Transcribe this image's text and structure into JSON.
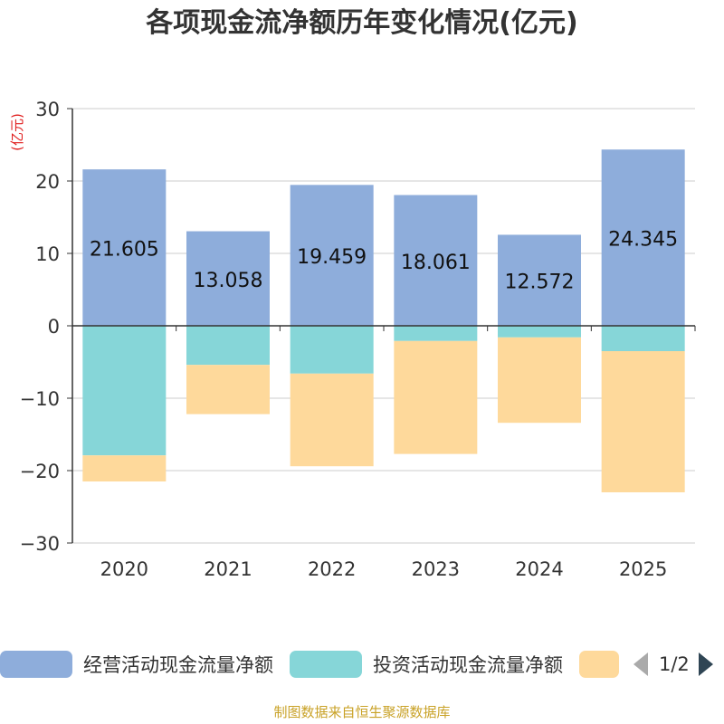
{
  "chart_data": {
    "type": "bar",
    "stacked": true,
    "title": "各项现金流净额历年变化情况(亿元)",
    "ylabel": "(亿元)",
    "categories": [
      "2020",
      "2021",
      "2022",
      "2023",
      "2024",
      "2025"
    ],
    "ylim": [
      -30,
      30
    ],
    "yticks": [
      30,
      20,
      10,
      0,
      -10,
      -20,
      -30
    ],
    "grid": true,
    "series": [
      {
        "name": "经营活动现金流量净额",
        "color": "#8eaddb",
        "values": [
          21.605,
          13.058,
          19.459,
          18.061,
          12.572,
          24.345
        ],
        "labels": [
          "21.605",
          "13.058",
          "19.459",
          "18.061",
          "12.572",
          "24.345"
        ]
      },
      {
        "name": "投资活动现金流量净额",
        "color": "#86d6d8",
        "values": [
          -17.9,
          -5.4,
          -6.6,
          -2.1,
          -1.6,
          -3.5
        ]
      },
      {
        "name": "",
        "color": "#fed99b",
        "values": [
          -3.6,
          -6.8,
          -12.8,
          -15.6,
          -11.8,
          -19.5
        ]
      }
    ],
    "legend_position": "bottom"
  },
  "legend": {
    "page": "1/2"
  },
  "footer": {
    "source": "制图数据来自恒生聚源数据库"
  }
}
